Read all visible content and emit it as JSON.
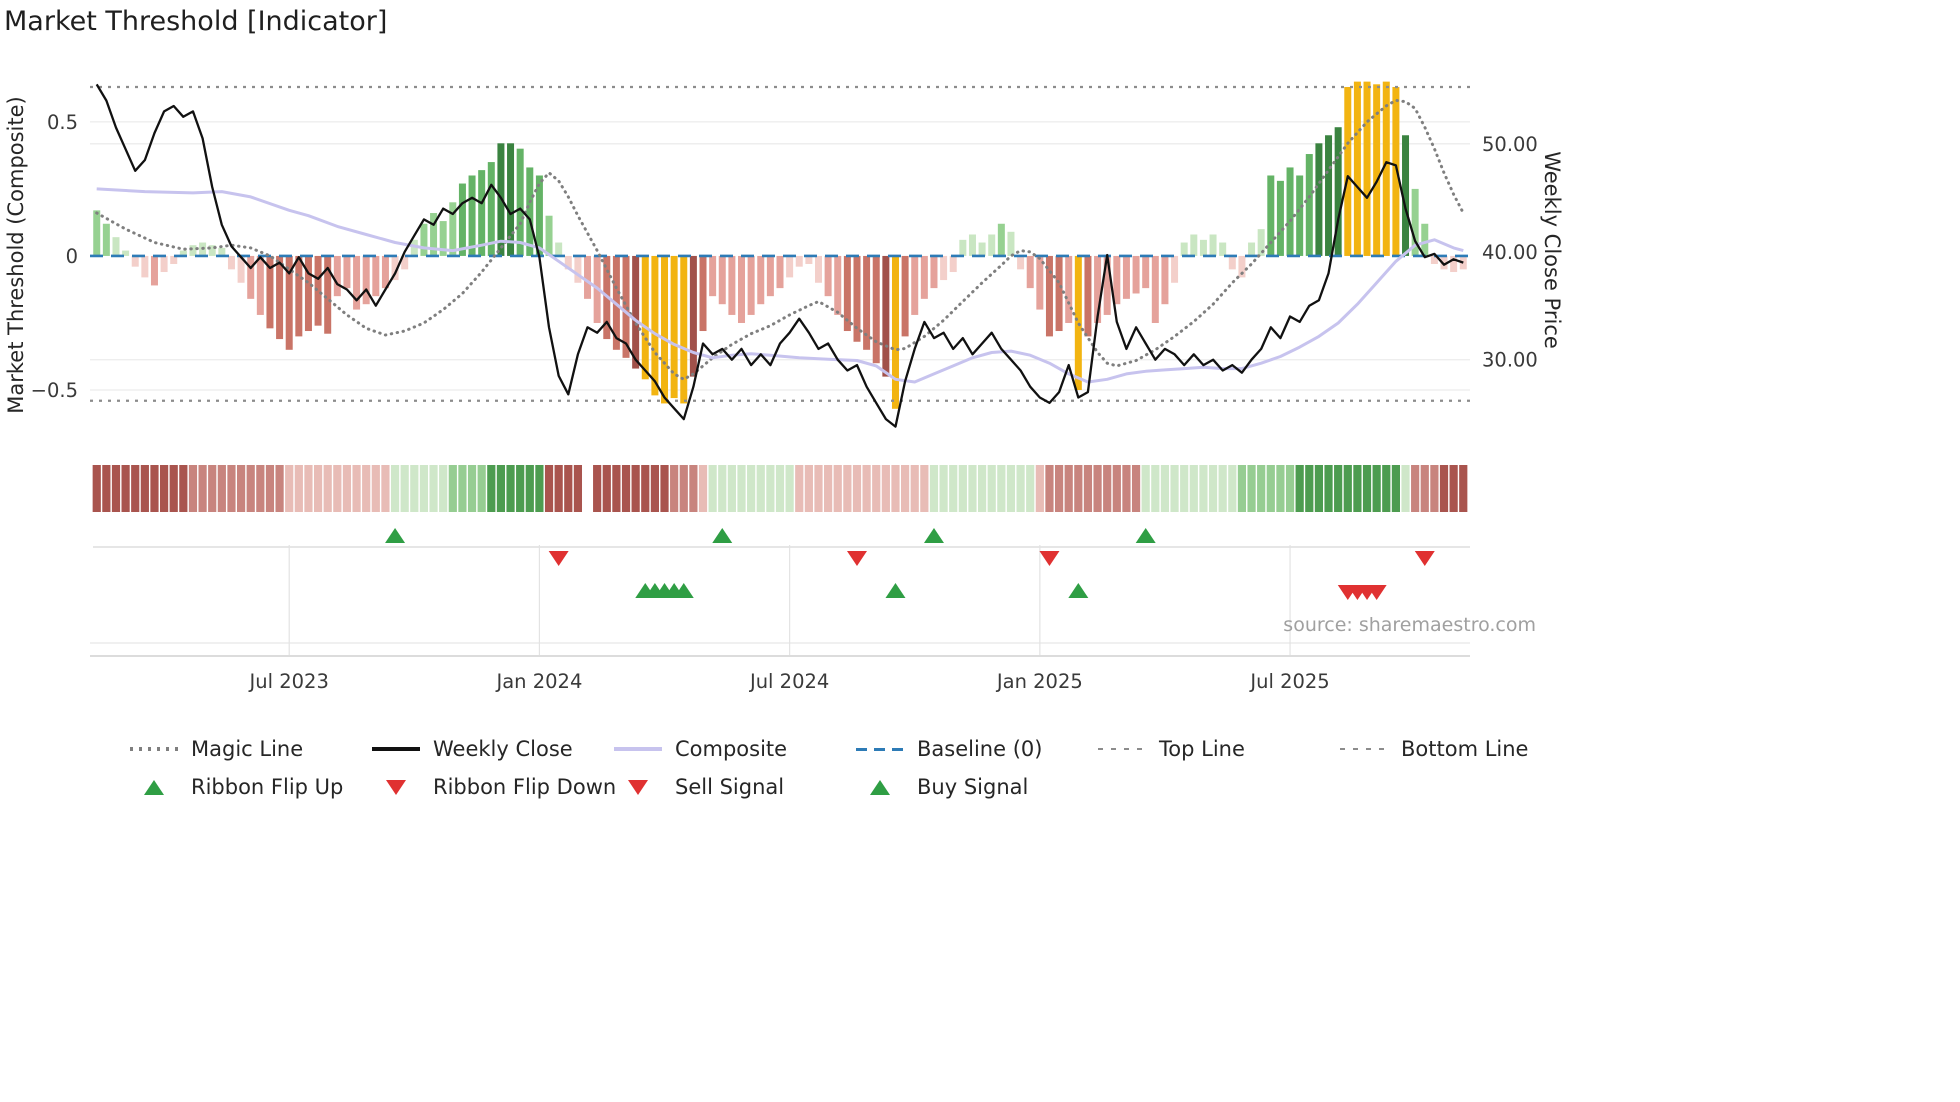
{
  "title": "Market Threshold [Indicator]",
  "source_credit": "source: sharemaestro.com",
  "colors": {
    "weekly_close": "#111111",
    "composite_line": "#c7c3ee",
    "magic_line": "#7f7f7f",
    "baseline": "#2d7bb6",
    "top_bottom": "#8c8c8c",
    "gold": "#f2b411",
    "green_shades": [
      "#c9e6c2",
      "#96d191",
      "#64b366",
      "#3a8340"
    ],
    "red_shades": [
      "#f3cfca",
      "#e5a29b",
      "#c97467",
      "#a1514a"
    ],
    "ribbon": {
      "-3": "#a9544e",
      "-2": "#c8847e",
      "-1": "#e8bcb6",
      "0": "#ffffff",
      "1": "#cfe7c9",
      "2": "#96cd92",
      "3": "#4d9c50"
    },
    "signal_green": "#2f9e44",
    "signal_red": "#e03131"
  },
  "chart_data": {
    "type": "bar+line+markers",
    "title": "Market Threshold [Indicator]",
    "x_index_range": [
      -0.7,
      142.7
    ],
    "x_ticks": [
      {
        "index": 20,
        "label": "Jul 2023"
      },
      {
        "index": 46,
        "label": "Jan 2024"
      },
      {
        "index": 72,
        "label": "Jul 2024"
      },
      {
        "index": 98,
        "label": "Jan 2025"
      },
      {
        "index": 124,
        "label": "Jul 2025"
      }
    ],
    "left_axis": {
      "label": "Market Threshold (Composite)",
      "range": [
        -0.705,
        0.712
      ],
      "ticks": [
        {
          "value": 0.5,
          "label": "0.5"
        },
        {
          "value": 0,
          "label": "0"
        },
        {
          "value": -0.5,
          "label": "−0.5"
        }
      ]
    },
    "right_axis": {
      "label": "Weekly Close Price",
      "range": [
        22.1,
        57.3
      ],
      "ticks": [
        {
          "value": 50,
          "label": "50.00"
        },
        {
          "value": 40,
          "label": "40.00"
        },
        {
          "value": 30,
          "label": "30.00"
        }
      ]
    },
    "baseline": 0,
    "top_line": 0.63,
    "bottom_line": -0.54,
    "composite_bars": [
      0.17,
      0.12,
      0.07,
      0.02,
      -0.04,
      -0.08,
      -0.11,
      -0.06,
      -0.03,
      0.02,
      0.04,
      0.05,
      0.04,
      0.03,
      -0.05,
      -0.1,
      -0.16,
      -0.22,
      -0.27,
      -0.31,
      -0.35,
      -0.3,
      -0.28,
      -0.26,
      -0.29,
      -0.15,
      -0.12,
      -0.2,
      -0.18,
      -0.15,
      -0.12,
      -0.09,
      -0.05,
      0.06,
      0.12,
      0.16,
      0.13,
      0.2,
      0.27,
      0.3,
      0.32,
      0.35,
      0.42,
      0.42,
      0.4,
      0.33,
      0.3,
      0.15,
      0.05,
      -0.05,
      -0.1,
      -0.16,
      -0.25,
      -0.31,
      -0.35,
      -0.38,
      -0.42,
      -0.46,
      -0.52,
      -0.55,
      -0.53,
      -0.55,
      -0.45,
      -0.28,
      -0.15,
      -0.18,
      -0.22,
      -0.25,
      -0.22,
      -0.18,
      -0.15,
      -0.12,
      -0.08,
      -0.04,
      -0.03,
      -0.1,
      -0.15,
      -0.22,
      -0.28,
      -0.32,
      -0.35,
      -0.4,
      -0.45,
      -0.57,
      -0.3,
      -0.22,
      -0.16,
      -0.12,
      -0.09,
      -0.06,
      0.06,
      0.08,
      0.05,
      0.08,
      0.12,
      0.09,
      -0.05,
      -0.12,
      -0.2,
      -0.3,
      -0.28,
      -0.25,
      -0.5,
      -0.3,
      -0.25,
      -0.22,
      -0.18,
      -0.16,
      -0.14,
      -0.12,
      -0.25,
      -0.18,
      -0.1,
      0.05,
      0.08,
      0.06,
      0.08,
      0.05,
      -0.05,
      -0.08,
      0.05,
      0.1,
      0.3,
      0.28,
      0.33,
      0.3,
      0.38,
      0.42,
      0.45,
      0.48,
      0.63,
      0.65,
      0.65,
      0.64,
      0.65,
      0.63,
      0.45,
      0.25,
      0.12,
      -0.03,
      -0.05,
      -0.06,
      -0.05
    ],
    "gold_weeks": [
      57,
      58,
      59,
      60,
      61,
      83,
      102,
      130,
      131,
      132,
      133,
      134,
      135
    ],
    "weekly_close": [
      55.5,
      54.0,
      51.5,
      49.5,
      47.5,
      48.5,
      51.0,
      53.0,
      53.5,
      52.5,
      53.0,
      50.5,
      46.0,
      42.5,
      40.5,
      39.5,
      38.5,
      39.5,
      38.5,
      39.0,
      38.0,
      39.5,
      38.0,
      37.5,
      38.5,
      37.0,
      36.5,
      35.5,
      36.5,
      35.0,
      36.5,
      38.0,
      40.0,
      41.5,
      43.0,
      42.5,
      44.0,
      43.5,
      44.5,
      45.0,
      44.5,
      46.2,
      45.0,
      43.5,
      44.0,
      43.0,
      39.5,
      33.0,
      28.5,
      26.8,
      30.5,
      33.0,
      32.5,
      33.5,
      32.0,
      31.5,
      30.0,
      29.0,
      28.0,
      26.5,
      25.5,
      24.5,
      27.5,
      31.5,
      30.5,
      31.0,
      30.0,
      31.0,
      29.5,
      30.5,
      29.5,
      31.5,
      32.5,
      33.8,
      32.5,
      31.0,
      31.5,
      30.0,
      29.0,
      29.5,
      27.5,
      26.0,
      24.5,
      23.8,
      28.0,
      31.0,
      33.5,
      32.0,
      32.5,
      31.0,
      32.0,
      30.5,
      31.5,
      32.5,
      31.0,
      30.0,
      29.0,
      27.5,
      26.5,
      26.0,
      27.0,
      29.5,
      26.5,
      27.0,
      34.0,
      39.7,
      33.5,
      31.0,
      33.0,
      31.5,
      30.0,
      31.0,
      30.5,
      29.5,
      30.5,
      29.5,
      30.0,
      29.0,
      29.5,
      28.8,
      30.0,
      31.0,
      33.0,
      32.0,
      34.0,
      33.5,
      35.0,
      35.5,
      38.0,
      43.0,
      47.0,
      46.0,
      45.0,
      46.5,
      48.3,
      48.0,
      44.0,
      41.0,
      39.5,
      39.8,
      38.8,
      39.3,
      39.0
    ],
    "composite_line": [
      [
        0,
        0.25
      ],
      [
        5,
        0.24
      ],
      [
        10,
        0.235
      ],
      [
        13,
        0.24
      ],
      [
        16,
        0.22
      ],
      [
        20,
        0.17
      ],
      [
        22,
        0.15
      ],
      [
        25,
        0.11
      ],
      [
        28,
        0.08
      ],
      [
        31,
        0.05
      ],
      [
        34,
        0.03
      ],
      [
        37,
        0.02
      ],
      [
        40,
        0.04
      ],
      [
        42,
        0.055
      ],
      [
        44,
        0.05
      ],
      [
        46,
        0.03
      ],
      [
        48,
        -0.02
      ],
      [
        50,
        -0.07
      ],
      [
        52,
        -0.12
      ],
      [
        54,
        -0.18
      ],
      [
        56,
        -0.24
      ],
      [
        58,
        -0.29
      ],
      [
        60,
        -0.33
      ],
      [
        62,
        -0.36
      ],
      [
        64,
        -0.38
      ],
      [
        66,
        -0.37
      ],
      [
        68,
        -0.365
      ],
      [
        70,
        -0.37
      ],
      [
        73,
        -0.38
      ],
      [
        76,
        -0.385
      ],
      [
        79,
        -0.39
      ],
      [
        81,
        -0.41
      ],
      [
        83,
        -0.46
      ],
      [
        85,
        -0.47
      ],
      [
        87,
        -0.44
      ],
      [
        89,
        -0.41
      ],
      [
        91,
        -0.38
      ],
      [
        93,
        -0.36
      ],
      [
        95,
        -0.355
      ],
      [
        97,
        -0.37
      ],
      [
        99,
        -0.4
      ],
      [
        101,
        -0.44
      ],
      [
        103,
        -0.47
      ],
      [
        105,
        -0.46
      ],
      [
        107,
        -0.44
      ],
      [
        109,
        -0.43
      ],
      [
        111,
        -0.425
      ],
      [
        113,
        -0.42
      ],
      [
        115,
        -0.415
      ],
      [
        117,
        -0.42
      ],
      [
        119,
        -0.42
      ],
      [
        121,
        -0.4
      ],
      [
        123,
        -0.375
      ],
      [
        125,
        -0.34
      ],
      [
        127,
        -0.3
      ],
      [
        129,
        -0.25
      ],
      [
        131,
        -0.18
      ],
      [
        133,
        -0.1
      ],
      [
        135,
        -0.02
      ],
      [
        137,
        0.04
      ],
      [
        139,
        0.06
      ],
      [
        141,
        0.03
      ],
      [
        142,
        0.02
      ]
    ],
    "magic_line": [
      [
        0,
        0.16
      ],
      [
        3,
        0.1
      ],
      [
        6,
        0.05
      ],
      [
        9,
        0.025
      ],
      [
        12,
        0.03
      ],
      [
        14,
        0.04
      ],
      [
        16,
        0.03
      ],
      [
        18,
        0.0
      ],
      [
        20,
        -0.05
      ],
      [
        22,
        -0.1
      ],
      [
        24,
        -0.16
      ],
      [
        26,
        -0.22
      ],
      [
        28,
        -0.27
      ],
      [
        30,
        -0.295
      ],
      [
        32,
        -0.28
      ],
      [
        34,
        -0.25
      ],
      [
        36,
        -0.2
      ],
      [
        38,
        -0.14
      ],
      [
        40,
        -0.06
      ],
      [
        42,
        0.03
      ],
      [
        44,
        0.12
      ],
      [
        45,
        0.2
      ],
      [
        46,
        0.27
      ],
      [
        47,
        0.31
      ],
      [
        48,
        0.28
      ],
      [
        49,
        0.22
      ],
      [
        50,
        0.15
      ],
      [
        52,
        0.02
      ],
      [
        54,
        -0.12
      ],
      [
        56,
        -0.25
      ],
      [
        58,
        -0.36
      ],
      [
        60,
        -0.44
      ],
      [
        61,
        -0.46
      ],
      [
        62,
        -0.44
      ],
      [
        63,
        -0.41
      ],
      [
        64,
        -0.38
      ],
      [
        66,
        -0.33
      ],
      [
        68,
        -0.29
      ],
      [
        70,
        -0.26
      ],
      [
        72,
        -0.22
      ],
      [
        74,
        -0.185
      ],
      [
        75,
        -0.17
      ],
      [
        77,
        -0.21
      ],
      [
        79,
        -0.27
      ],
      [
        81,
        -0.32
      ],
      [
        83,
        -0.35
      ],
      [
        84,
        -0.345
      ],
      [
        86,
        -0.3
      ],
      [
        88,
        -0.24
      ],
      [
        90,
        -0.17
      ],
      [
        92,
        -0.1
      ],
      [
        94,
        -0.035
      ],
      [
        95,
        0.0
      ],
      [
        96,
        0.02
      ],
      [
        97,
        0.015
      ],
      [
        98,
        -0.01
      ],
      [
        100,
        -0.1
      ],
      [
        102,
        -0.25
      ],
      [
        104,
        -0.36
      ],
      [
        105,
        -0.4
      ],
      [
        106,
        -0.41
      ],
      [
        108,
        -0.39
      ],
      [
        110,
        -0.35
      ],
      [
        112,
        -0.3
      ],
      [
        114,
        -0.245
      ],
      [
        116,
        -0.18
      ],
      [
        118,
        -0.1
      ],
      [
        120,
        -0.03
      ],
      [
        122,
        0.05
      ],
      [
        124,
        0.13
      ],
      [
        126,
        0.22
      ],
      [
        128,
        0.32
      ],
      [
        130,
        0.42
      ],
      [
        132,
        0.5
      ],
      [
        134,
        0.56
      ],
      [
        135,
        0.58
      ],
      [
        136,
        0.575
      ],
      [
        137,
        0.55
      ],
      [
        138,
        0.48
      ],
      [
        139,
        0.4
      ],
      [
        140,
        0.31
      ],
      [
        141,
        0.23
      ],
      [
        142,
        0.16
      ]
    ],
    "ribbon": [
      -3,
      -3,
      -3,
      -3,
      -3,
      -3,
      -3,
      -3,
      -3,
      -3,
      -2,
      -2,
      -2,
      -2,
      -2,
      -2,
      -2,
      -2,
      -2,
      -2,
      -1,
      -1,
      -1,
      -1,
      -1,
      -1,
      -1,
      -1,
      -1,
      -1,
      -1,
      1,
      1,
      1,
      1,
      1,
      1,
      2,
      2,
      2,
      2,
      3,
      3,
      3,
      3,
      3,
      3,
      -3,
      -3,
      -3,
      -3,
      0,
      -3,
      -3,
      -3,
      -3,
      -3,
      -3,
      -3,
      -3,
      -2,
      -2,
      -2,
      -1,
      1,
      1,
      1,
      1,
      1,
      1,
      1,
      1,
      1,
      -1,
      -1,
      -1,
      -1,
      -1,
      -1,
      -1,
      -1,
      -1,
      -1,
      -1,
      -1,
      -1,
      -1,
      1,
      1,
      1,
      1,
      1,
      1,
      1,
      1,
      1,
      1,
      1,
      -1,
      -2,
      -2,
      -2,
      -2,
      -2,
      -2,
      -2,
      -2,
      -2,
      -2,
      1,
      1,
      1,
      1,
      1,
      1,
      1,
      1,
      1,
      1,
      2,
      2,
      2,
      2,
      2,
      2,
      3,
      3,
      3,
      3,
      3,
      3,
      3,
      3,
      3,
      3,
      3,
      1,
      -2,
      -2,
      -2,
      -3,
      -3,
      -3
    ],
    "signals": {
      "ribbon_flip_up": [
        31,
        65,
        87,
        109
      ],
      "ribbon_flip_down": [
        48,
        79,
        99,
        138
      ],
      "buy": [
        57,
        58,
        59,
        60,
        61,
        83,
        102
      ],
      "sell": [
        130,
        131,
        132,
        133
      ]
    }
  },
  "legend": {
    "lines": [
      {
        "label": "Magic Line",
        "style": "dotted",
        "color": "#7f7f7f"
      },
      {
        "label": "Weekly Close",
        "style": "solid",
        "color": "#111111"
      },
      {
        "label": "Composite",
        "style": "solid",
        "color": "#c7c3ee"
      },
      {
        "label": "Baseline (0)",
        "style": "dashed",
        "color": "#2d7bb6"
      },
      {
        "label": "Top Line",
        "style": "sparse-dashed",
        "color": "#8c8c8c"
      },
      {
        "label": "Bottom Line",
        "style": "sparse-dashed",
        "color": "#8c8c8c"
      }
    ],
    "markers": [
      {
        "label": "Ribbon Flip Up",
        "shape": "triangle-up",
        "color": "#2f9e44"
      },
      {
        "label": "Ribbon Flip Down",
        "shape": "triangle-down",
        "color": "#e03131"
      },
      {
        "label": "Sell Signal",
        "shape": "triangle-down",
        "color": "#e03131"
      },
      {
        "label": "Buy Signal",
        "shape": "triangle-up",
        "color": "#2f9e44"
      }
    ]
  }
}
